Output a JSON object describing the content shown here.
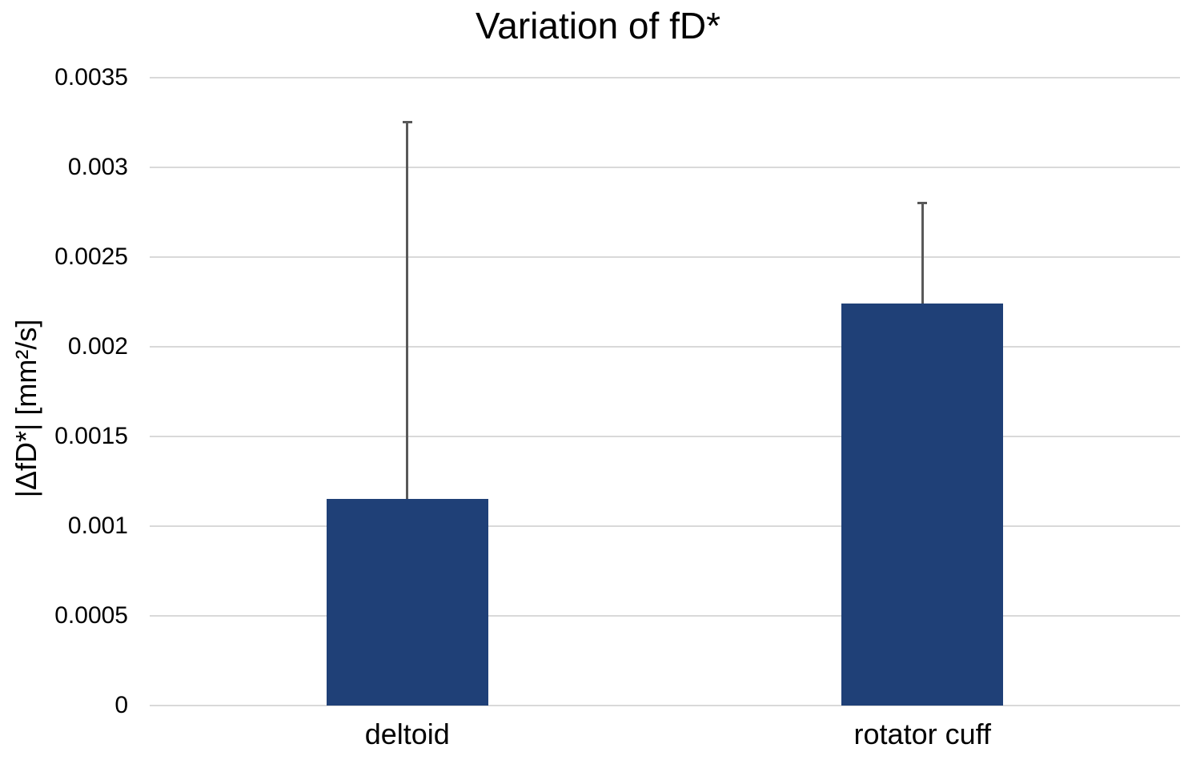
{
  "chart": {
    "title": "Variation of fD*",
    "y_axis_label": "|ΔfD*| [mm²/s]"
  },
  "chart_data": {
    "type": "bar",
    "title": "Variation of fD*",
    "categories": [
      "deltoid",
      "rotator cuff"
    ],
    "values": [
      0.00115,
      0.00224
    ],
    "errors_plus": [
      0.00211,
      0.00057
    ],
    "error_bar_tops": [
      0.00326,
      0.00281
    ],
    "xlabel": "",
    "ylabel": "|ΔfD*| [mm²/s]",
    "ylim": [
      0,
      0.0035
    ],
    "ytick_step": 0.0005,
    "yticks": [
      "0",
      "0.0005",
      "0.001",
      "0.0015",
      "0.002",
      "0.0025",
      "0.003",
      "0.0035"
    ],
    "grid": true,
    "legend": false,
    "colors": {
      "bar": "#1F4077",
      "error_bar": "#595959",
      "gridline": "#D9D9D9",
      "text": "#000000",
      "background": "#FFFFFF"
    }
  }
}
